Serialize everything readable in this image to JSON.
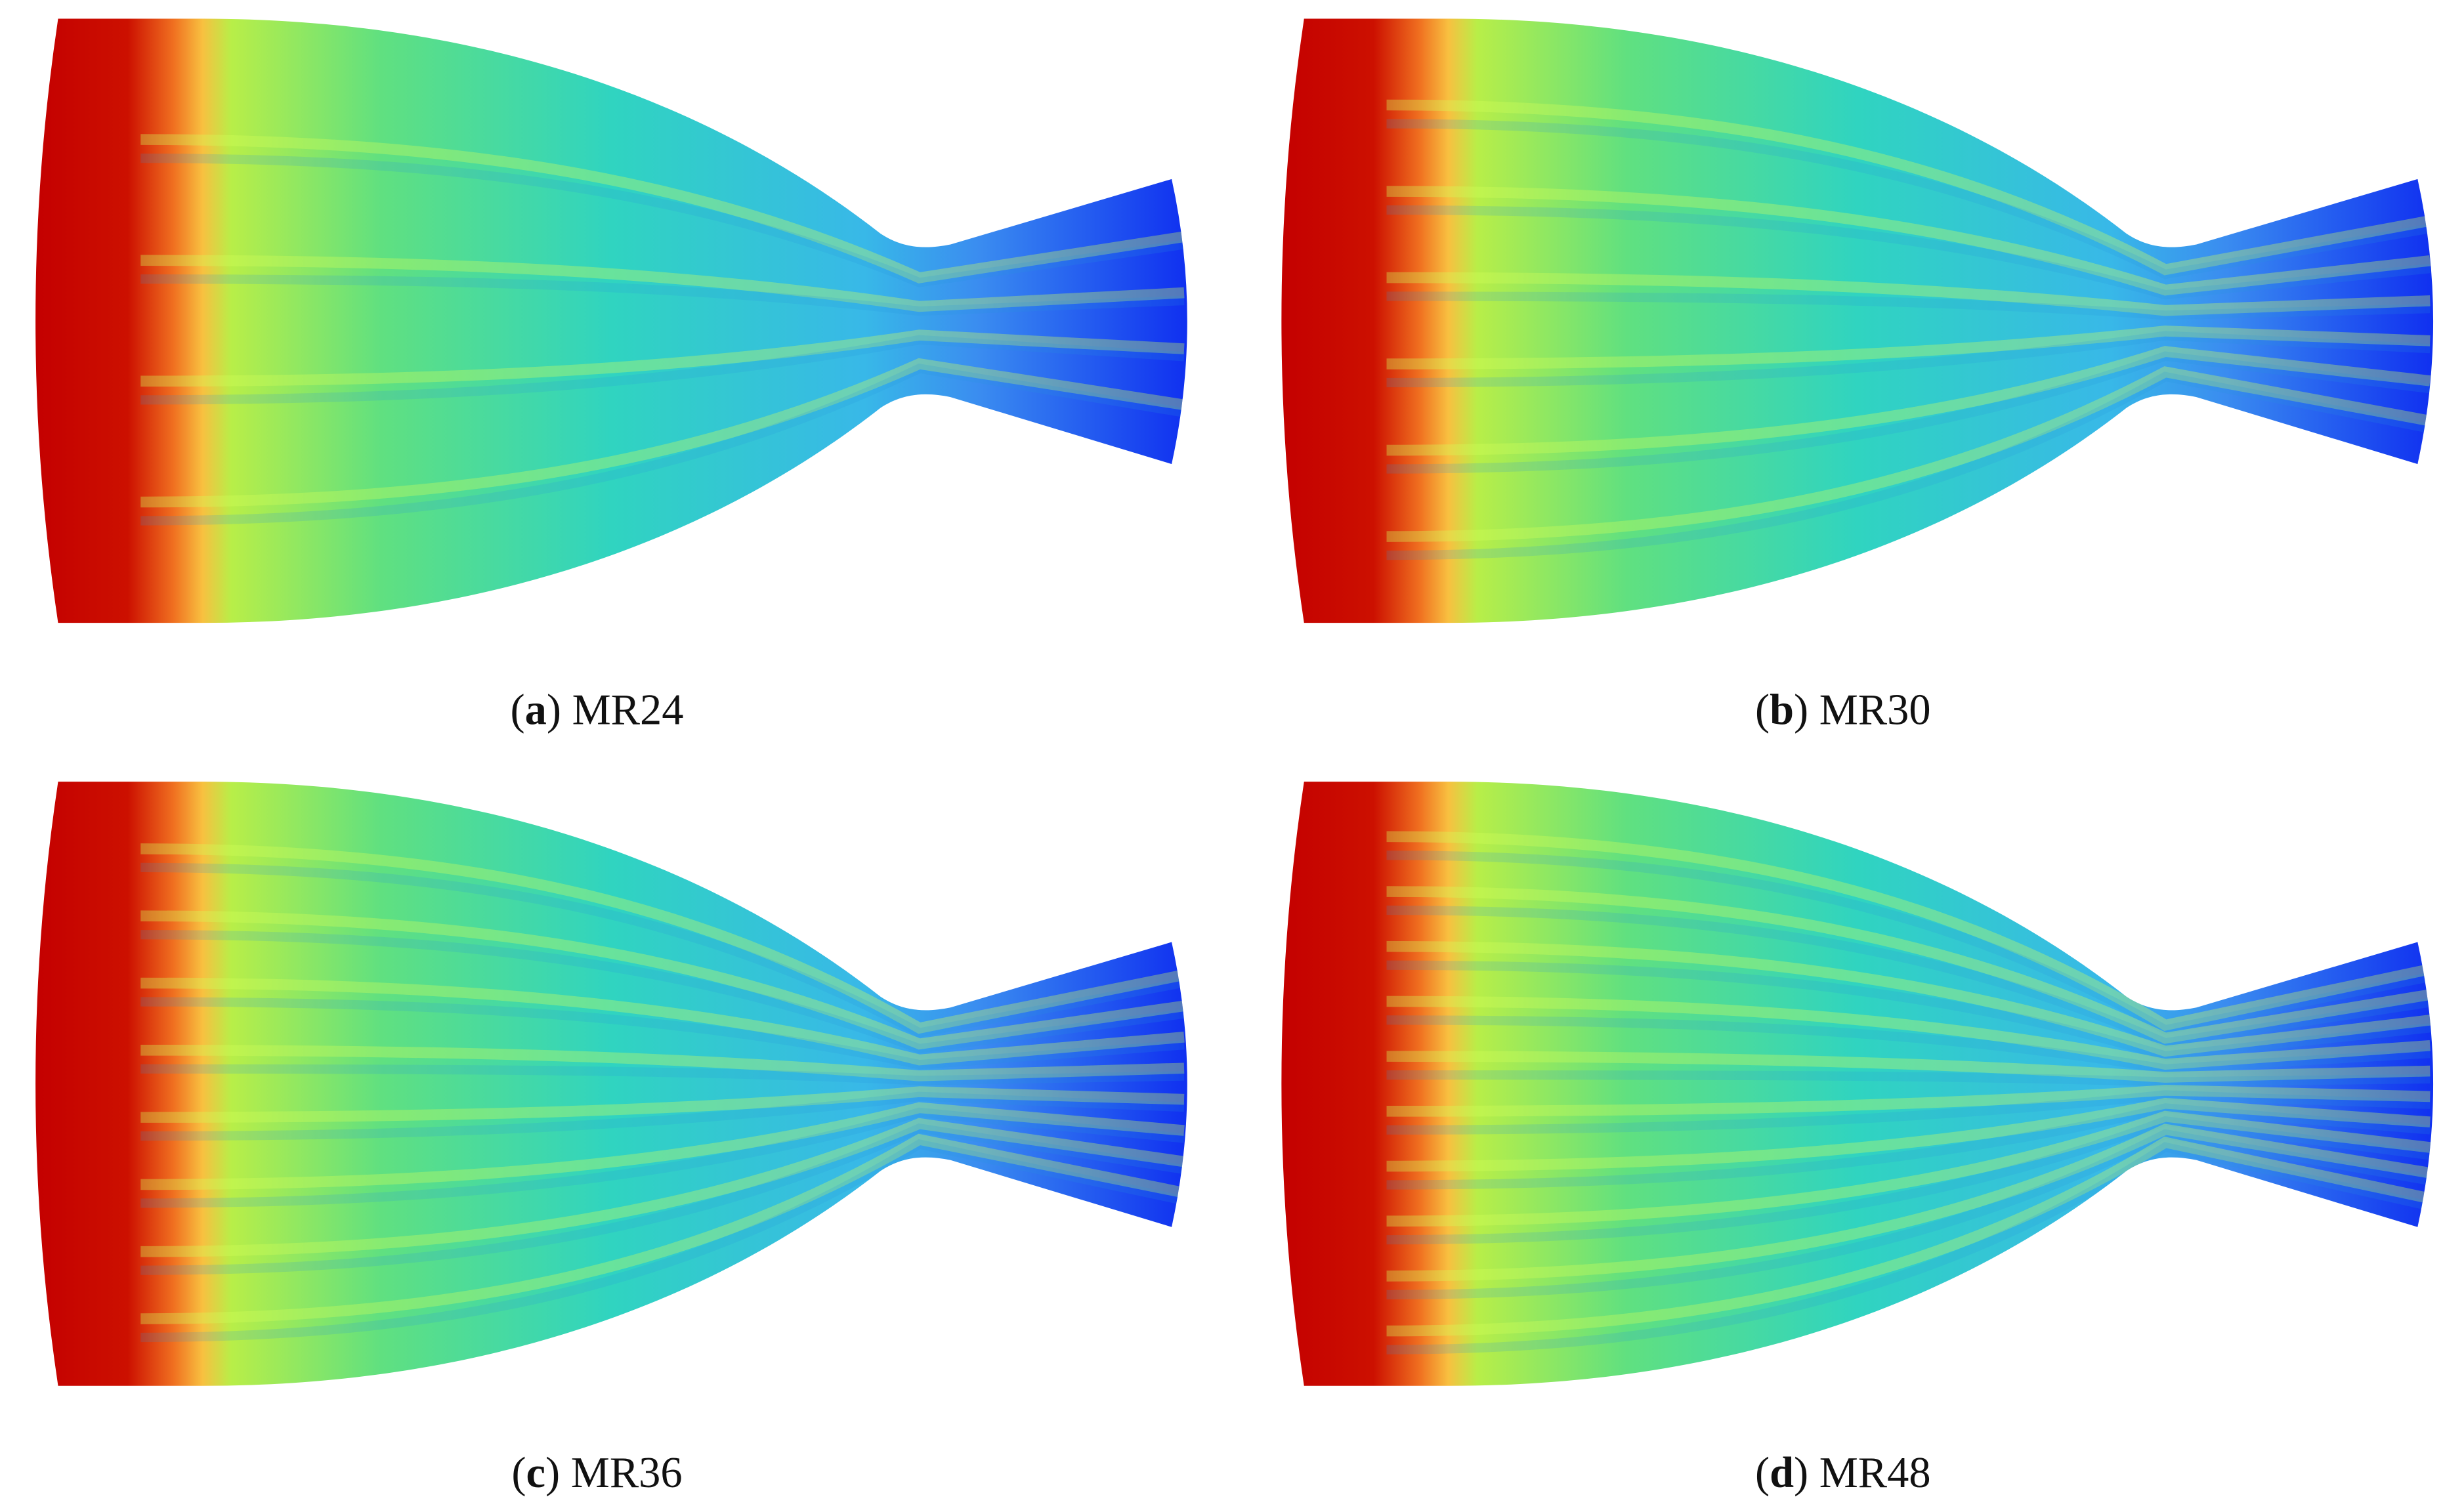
{
  "panels": [
    {
      "caption": [
        "(",
        "a",
        ") MR24"
      ]
    },
    {
      "caption": [
        "(",
        "b",
        ") MR30"
      ]
    },
    {
      "caption": [
        "(",
        "c",
        ") MR36"
      ]
    },
    {
      "caption": [
        "(",
        "d",
        ") MR48"
      ]
    }
  ]
}
